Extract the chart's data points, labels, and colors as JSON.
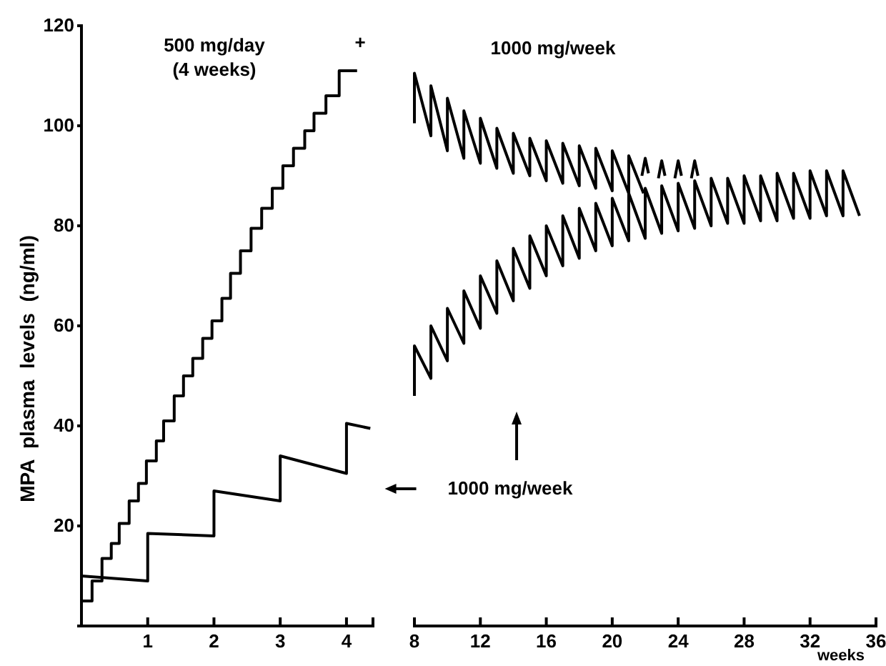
{
  "chart_data": [
    {
      "type": "line",
      "ylabel": "MPA  plasma  levels  (ng/ml)",
      "xlim": [
        0,
        4.4
      ],
      "xticks": [
        1,
        2,
        3,
        4
      ],
      "ylim": [
        0,
        120
      ],
      "yticks": [
        20,
        40,
        60,
        80,
        100,
        120
      ],
      "grid": false,
      "marker": "none",
      "annotations": [
        "500 mg/day\n(4 weeks)",
        "+"
      ],
      "series": [
        {
          "type": "step",
          "color": "#000000",
          "x": [
            0,
            0.16,
            0.31,
            0.45,
            0.57,
            0.72,
            0.86,
            0.98,
            1.13,
            1.24,
            1.4,
            1.54,
            1.68,
            1.83,
            1.97,
            2.12,
            2.25,
            2.4,
            2.56,
            2.72,
            2.88,
            3.04,
            3.2,
            3.37,
            3.51,
            3.69,
            3.89,
            4.16
          ],
          "values": [
            5,
            9,
            13.5,
            16.5,
            20.5,
            25,
            28.5,
            33,
            37,
            41,
            46,
            50,
            53.5,
            57.5,
            61,
            65.5,
            70.5,
            75,
            79.5,
            83.5,
            87.5,
            92,
            95.5,
            99,
            102.5,
            106,
            111,
            111
          ]
        },
        {
          "color": "#000000",
          "x": [
            0,
            1,
            1,
            2,
            2,
            3,
            3,
            4,
            4,
            4.36
          ],
          "values": [
            10,
            9,
            18.5,
            18,
            27,
            25,
            34,
            30.5,
            40.5,
            39.5
          ]
        }
      ]
    },
    {
      "type": "line",
      "xlabel": "weeks",
      "xlim": [
        8,
        36
      ],
      "xticks": [
        8,
        12,
        16,
        20,
        24,
        28,
        32,
        36
      ],
      "ylim": [
        0,
        120
      ],
      "tick_labels": "x",
      "grid": false,
      "marker": "none",
      "annotations": [
        "1000 mg/week",
        "1000 mg/week"
      ],
      "series": [
        {
          "color": "#000000",
          "x": [
            8,
            8,
            9,
            9,
            10,
            10,
            11,
            11,
            12,
            12,
            13,
            13,
            14,
            14,
            15,
            15,
            16,
            16,
            17,
            17,
            18,
            18,
            19,
            19,
            20,
            20,
            21,
            21,
            21.9
          ],
          "values": [
            100.5,
            110.5,
            98,
            108,
            95,
            105.5,
            93.5,
            103,
            92.5,
            101.5,
            91.5,
            99.5,
            90.5,
            98.5,
            90,
            97.5,
            89,
            97,
            88.5,
            96.5,
            88,
            96,
            87.5,
            95.5,
            87,
            95,
            86.5,
            94,
            86.5
          ]
        },
        {
          "color": "#000000",
          "x": [
            21.8,
            22,
            22.2
          ],
          "values": [
            90,
            93.5,
            90.5
          ]
        },
        {
          "color": "#000000",
          "x": [
            22.8,
            23,
            23.2
          ],
          "values": [
            89.5,
            93,
            90
          ]
        },
        {
          "color": "#000000",
          "x": [
            23.8,
            24,
            24.2
          ],
          "values": [
            89.5,
            93,
            90
          ]
        },
        {
          "color": "#000000",
          "x": [
            24.8,
            25,
            25.2
          ],
          "values": [
            89.5,
            93,
            90
          ]
        },
        {
          "color": "#000000",
          "x": [
            8,
            8,
            9,
            9,
            10,
            10,
            11,
            11,
            12,
            12,
            13,
            13,
            14,
            14,
            15,
            15,
            16,
            16,
            17,
            17,
            18,
            18,
            19,
            19,
            20,
            20,
            21,
            21,
            22,
            22,
            23,
            23,
            24,
            24,
            25,
            25,
            26,
            26,
            27,
            27,
            28,
            28,
            29,
            29,
            30,
            30,
            31,
            31,
            32,
            32,
            33,
            33,
            34,
            34,
            35
          ],
          "values": [
            46,
            56,
            49.5,
            60,
            53,
            63.5,
            56.5,
            67,
            59.5,
            70,
            62.5,
            73,
            65,
            75.5,
            67.5,
            78,
            70,
            80,
            72,
            82,
            73.5,
            83.5,
            75,
            84.5,
            76,
            85.5,
            77,
            86.5,
            77.5,
            87.5,
            78.5,
            88,
            79,
            88.5,
            79.5,
            89,
            80,
            89.5,
            80.5,
            89.5,
            80.5,
            90,
            81,
            90,
            81,
            90.5,
            81.5,
            90.5,
            81.5,
            91,
            82,
            91,
            82,
            91,
            82
          ]
        }
      ]
    }
  ]
}
